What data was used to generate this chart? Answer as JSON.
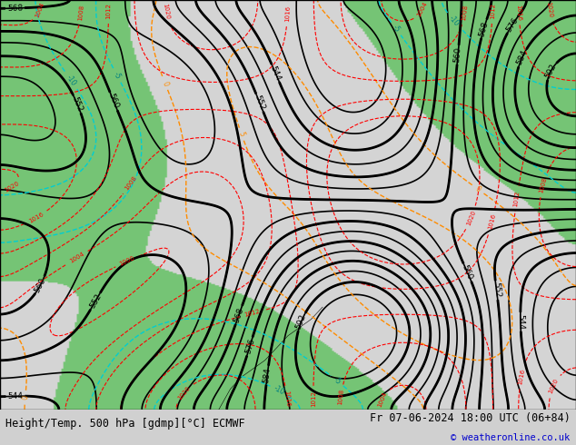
{
  "title_bottom_left": "Height/Temp. 500 hPa [gdmp][°C] ECMWF",
  "title_bottom_right": "Fr 07-06-2024 18:00 UTC (06+84)",
  "copyright": "© weatheronline.co.uk",
  "bg_color": "#e8e8e8",
  "map_bg": "#f0f0f0",
  "green_fill": "#90ee90",
  "figsize": [
    6.34,
    4.9
  ],
  "dpi": 100
}
